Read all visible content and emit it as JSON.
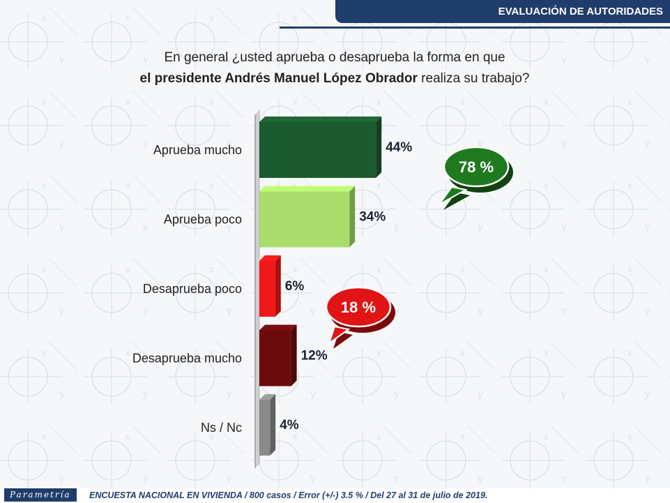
{
  "header": {
    "title": "EVALUACIÓN DE AUTORIDADES"
  },
  "question": {
    "line1": "En general ¿usted aprueba o desaprueba la forma en que",
    "line2_bold": "el presidente Andrés Manuel López Obrador",
    "line2_rest": " realiza su trabajo?"
  },
  "watermark": {
    "brand": "Parametría"
  },
  "chart_data": {
    "type": "bar",
    "orientation": "horizontal",
    "categories": [
      "Aprueba mucho",
      "Aprueba poco",
      "Desaprueba poco",
      "Desaprueba mucho",
      "Ns / Nc"
    ],
    "values": [
      44,
      34,
      6,
      12,
      4
    ],
    "value_labels": [
      "44%",
      "34%",
      "6%",
      "12%",
      "4%"
    ],
    "colors": [
      "#1c5a2f",
      "#a9dc6a",
      "#f01818",
      "#6b0c0c",
      "#8a8a8a"
    ],
    "xlim": [
      0,
      100
    ],
    "grid": false,
    "annotations": [
      {
        "text": "78 %",
        "color": "#1f7a1f",
        "groups": [
          "Aprueba mucho",
          "Aprueba poco"
        ]
      },
      {
        "text": "18 %",
        "color": "#e01414",
        "groups": [
          "Desaprueba poco",
          "Desaprueba mucho"
        ]
      }
    ]
  },
  "footer": {
    "logo": "Parametría",
    "text": "ENCUESTA NACIONAL EN VIVIENDA / 800 casos / Error (+/-) 3.5 % / Del 27 al 31 de julio de 2019."
  }
}
